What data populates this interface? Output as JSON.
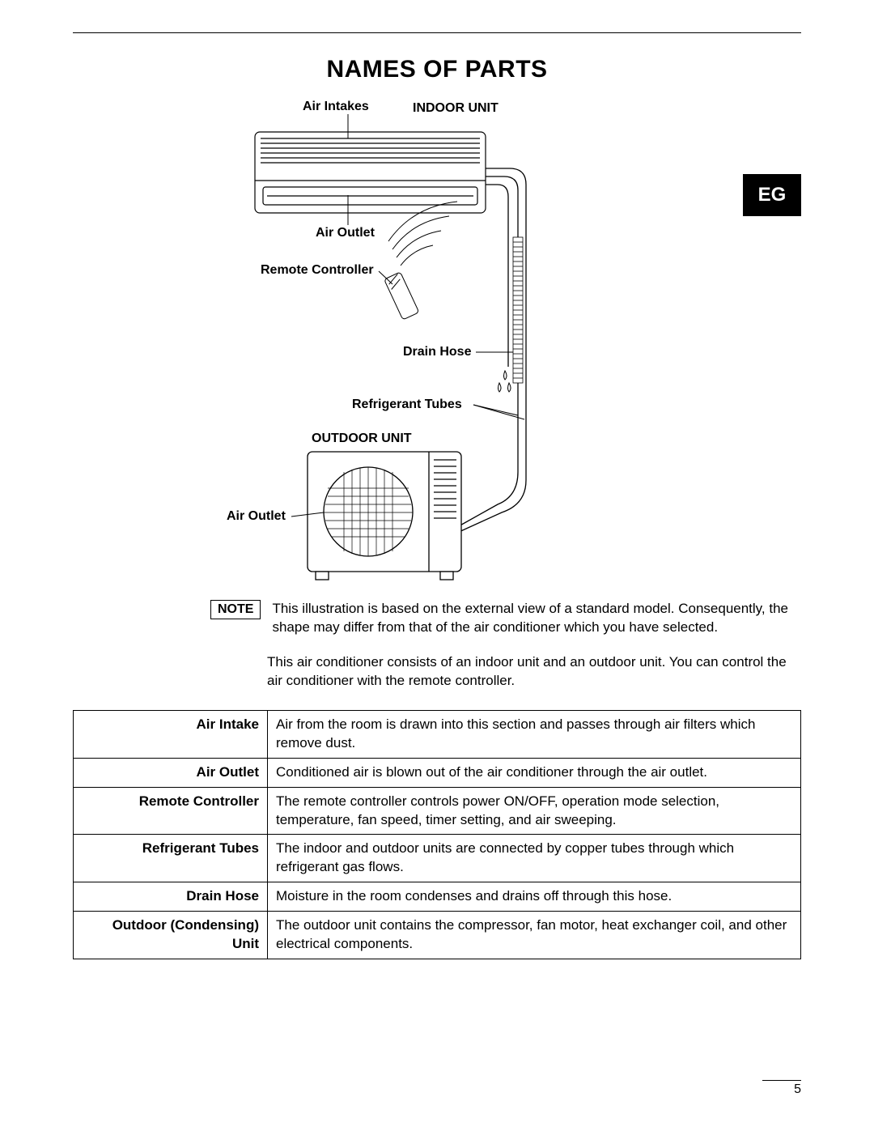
{
  "title": "NAMES OF PARTS",
  "lang_tab": "EG",
  "diagram": {
    "labels": {
      "air_intakes": "Air Intakes",
      "indoor_unit": "INDOOR UNIT",
      "air_outlet_top": "Air Outlet",
      "remote_controller": "Remote Controller",
      "drain_hose": "Drain Hose",
      "refrigerant_tubes": "Refrigerant Tubes",
      "outdoor_unit": "OUTDOOR UNIT",
      "air_outlet_bottom": "Air Outlet"
    },
    "colors": {
      "stroke": "#000000",
      "fill": "#ffffff",
      "light_fill": "#f5f5f5"
    }
  },
  "note": {
    "badge": "NOTE",
    "text": "This illustration is based on the external view of a standard model. Consequently, the shape may differ from that of the air conditioner which you have selected."
  },
  "description": "This air conditioner consists of an indoor unit and an outdoor unit. You can control the air conditioner with the remote controller.",
  "parts_table": [
    {
      "name": "Air Intake",
      "desc": "Air from the room is drawn into this section and passes through air filters which remove dust."
    },
    {
      "name": "Air Outlet",
      "desc": "Conditioned air is blown out of the air conditioner through the air outlet."
    },
    {
      "name": "Remote Controller",
      "desc": "The remote controller controls power ON/OFF, operation mode selection, temperature, fan speed, timer setting, and air sweeping."
    },
    {
      "name": "Refrigerant Tubes",
      "desc": "The indoor and outdoor units are connected by copper tubes through which refrigerant gas flows."
    },
    {
      "name": "Drain Hose",
      "desc": "Moisture in the room condenses and drains off through this hose."
    },
    {
      "name": "Outdoor (Condensing) Unit",
      "desc": "The outdoor unit contains the compressor, fan motor, heat exchanger coil, and other electrical components."
    }
  ],
  "page_number": "5"
}
